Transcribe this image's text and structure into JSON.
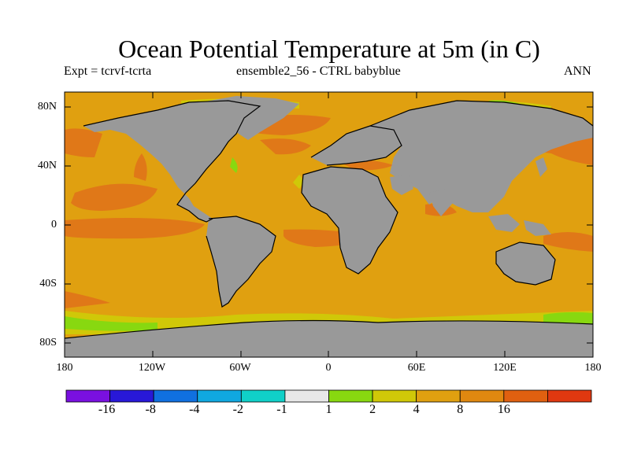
{
  "title": "Ocean Potential Temperature at 5m (in C)",
  "subtitle_left": "Expt = tcrvf-tcrta",
  "subtitle_center": "ensemble2_56 - CTRL babyblue",
  "subtitle_right": "ANN",
  "lat_labels": [
    "80N",
    "40N",
    "0",
    "40S",
    "80S"
  ],
  "lon_labels": [
    "180",
    "120W",
    "60W",
    "0",
    "60E",
    "120E",
    "180"
  ],
  "colorbar": {
    "colors": [
      "#7a10e0",
      "#2818d8",
      "#1070e0",
      "#10a8e0",
      "#10d0c8",
      "#e8e8e8",
      "#88d810",
      "#d0c808",
      "#e0a010",
      "#e08810",
      "#e06010",
      "#e03810"
    ],
    "labels": [
      "-16",
      "-8",
      "-4",
      "-2",
      "-1",
      "1",
      "2",
      "4",
      "8",
      "16"
    ]
  },
  "map_colors": {
    "land": "#999999",
    "ocean_base": "#e0a010",
    "warm_band": "#e07818",
    "cool_band": "#d0c808",
    "cold_band": "#88d810"
  }
}
